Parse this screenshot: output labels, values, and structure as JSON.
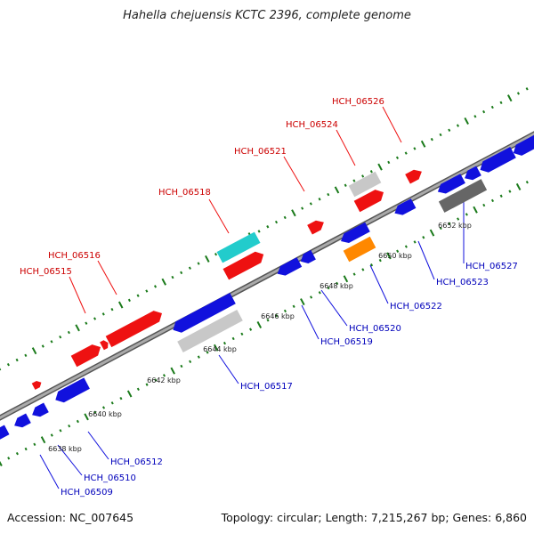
{
  "title": "Hahella chejuensis KCTC 2396, complete genome",
  "footer": {
    "accession": "Accession: NC_007645",
    "topology": "Topology: circular; Length: 7,215,267 bp; Genes: 6,860"
  },
  "colors": {
    "forward_gene": "#ee1111",
    "reverse_gene": "#1111dd",
    "backbone": "#888888",
    "tick_marks": "#1a7a1a",
    "highlight_cyan": "#22cccc",
    "highlight_orange": "#ff8800",
    "pseudo_gray": "#c8c8c8",
    "dark_gray": "#666666"
  },
  "scale_labels": [
    "6638 kbp",
    "6640 kbp",
    "6642 kbp",
    "6644 kbp",
    "6646 kbp",
    "6648 kbp",
    "6650 kbp",
    "6652 kbp"
  ],
  "forward_labels": [
    "HCH_06515",
    "HCH_06516",
    "HCH_06518",
    "HCH_06521",
    "HCH_06524",
    "HCH_06526"
  ],
  "reverse_labels": [
    "HCH_06509",
    "HCH_06510",
    "HCH_06512",
    "HCH_06517",
    "HCH_06519",
    "HCH_06520",
    "HCH_06522",
    "HCH_06523",
    "HCH_06527"
  ]
}
